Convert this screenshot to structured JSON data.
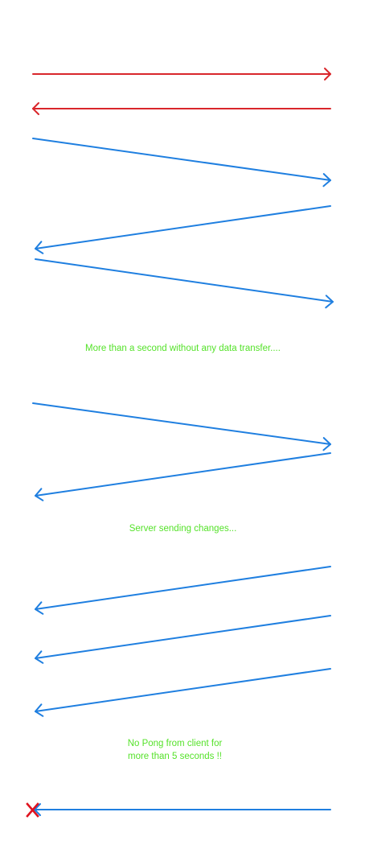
{
  "colors": {
    "handshake": "#d9262b",
    "message": "#1f7fe0",
    "annotation": "#55e22a",
    "disconnect": "#e0131f"
  },
  "annotations": {
    "idle": "More than a second without any data transfer....",
    "server_sending": "Server sending changes...",
    "no_pong": {
      "line1": "No Pong from client for",
      "line2": "more than 5 seconds !!"
    }
  },
  "icons": {
    "disconnect": "close-x-icon"
  }
}
